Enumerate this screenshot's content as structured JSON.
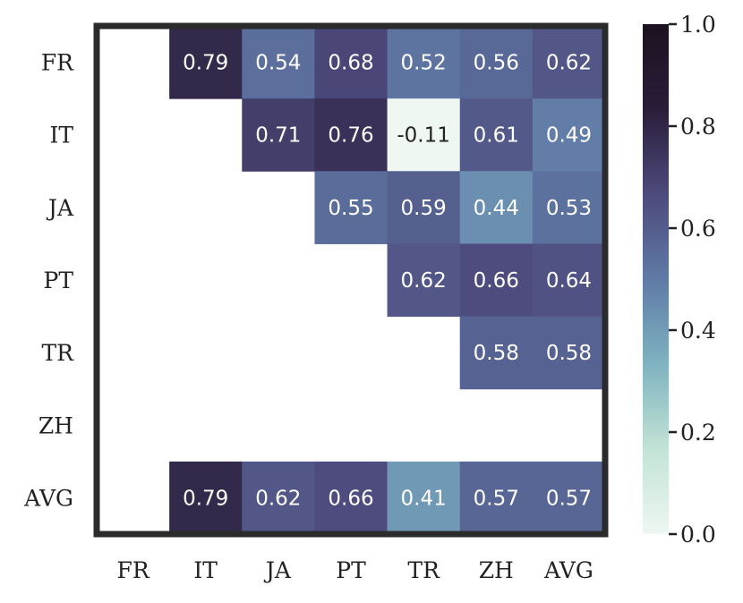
{
  "chart_data": {
    "type": "heatmap",
    "row_labels": [
      "FR",
      "IT",
      "JA",
      "PT",
      "TR",
      "ZH",
      "AVG"
    ],
    "col_labels": [
      "FR",
      "IT",
      "JA",
      "PT",
      "TR",
      "ZH",
      "AVG"
    ],
    "values": [
      [
        null,
        0.79,
        0.54,
        0.68,
        0.52,
        0.56,
        0.62
      ],
      [
        null,
        null,
        0.71,
        0.76,
        -0.11,
        0.61,
        0.49
      ],
      [
        null,
        null,
        null,
        0.55,
        0.59,
        0.44,
        0.53
      ],
      [
        null,
        null,
        null,
        null,
        0.62,
        0.66,
        0.64
      ],
      [
        null,
        null,
        null,
        null,
        null,
        0.58,
        0.58
      ],
      [
        null,
        null,
        null,
        null,
        null,
        null,
        null
      ],
      [
        null,
        0.79,
        0.62,
        0.66,
        0.41,
        0.57,
        0.57
      ]
    ],
    "cell_text": [
      [
        "",
        "0.79",
        "0.54",
        "0.68",
        "0.52",
        "0.56",
        "0.62"
      ],
      [
        "",
        "",
        "0.71",
        "0.76",
        "-0.11",
        "0.61",
        "0.49"
      ],
      [
        "",
        "",
        "",
        "0.55",
        "0.59",
        "0.44",
        "0.53"
      ],
      [
        "",
        "",
        "",
        "",
        "0.62",
        "0.66",
        "0.64"
      ],
      [
        "",
        "",
        "",
        "",
        "",
        "0.58",
        "0.58"
      ],
      [
        "",
        "",
        "",
        "",
        "",
        "",
        ""
      ],
      [
        "",
        "0.79",
        "0.62",
        "0.66",
        "0.41",
        "0.57",
        "0.57"
      ]
    ],
    "colorbar": {
      "vmin": 0.0,
      "vmax": 1.0,
      "ticks": [
        "0.0",
        "0.2",
        "0.4",
        "0.6",
        "0.8",
        "1.0"
      ],
      "colormap": [
        "#eef7f2",
        "#c2e3d5",
        "#7fb3c1",
        "#5f7aa6",
        "#4d4a7c",
        "#2a1d3a",
        "#1b121f"
      ]
    },
    "frame_color": "#2b2b2b",
    "grid": false
  }
}
